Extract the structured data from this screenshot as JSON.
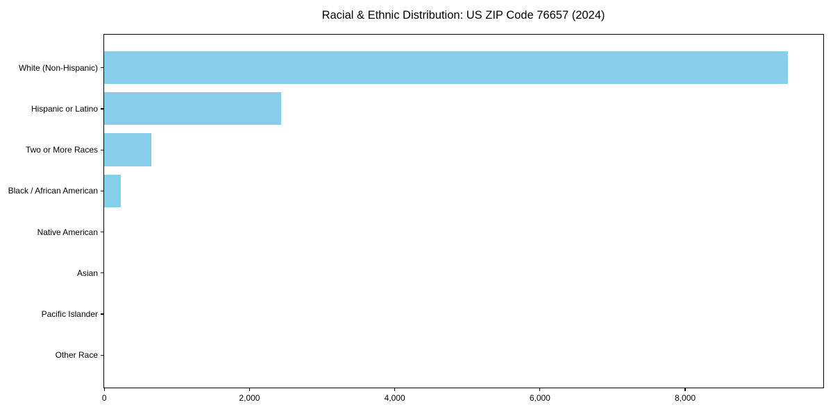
{
  "chart_data": {
    "type": "bar",
    "orientation": "horizontal",
    "title": "Racial & Ethnic Distribution: US ZIP Code 76657 (2024)",
    "categories": [
      "White (Non-Hispanic)",
      "Hispanic or Latino",
      "Two or More Races",
      "Black / African American",
      "Native American",
      "Asian",
      "Pacific Islander",
      "Other Race"
    ],
    "values": [
      9420,
      2440,
      650,
      230,
      0,
      0,
      0,
      0
    ],
    "xlabel": "",
    "ylabel": "",
    "xlim": [
      0,
      9900
    ],
    "xticks": [
      0,
      2000,
      4000,
      6000,
      8000
    ],
    "xtick_labels": [
      "0",
      "2,000",
      "4,000",
      "6,000",
      "8,000"
    ],
    "grid": false,
    "legend": "none",
    "bar_color": "#87CEEB",
    "spine_color": "#000000",
    "text_color": "#000000",
    "background_color": "#ffffff"
  }
}
